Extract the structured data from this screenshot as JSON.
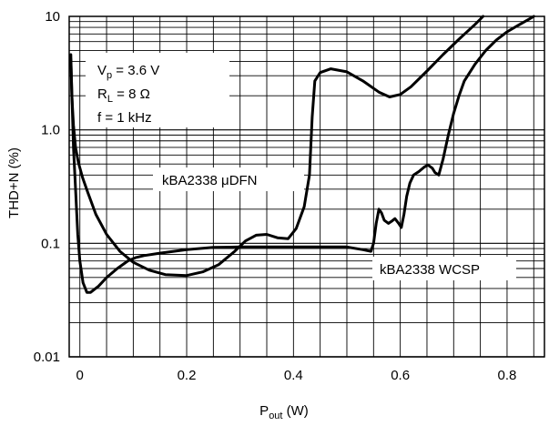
{
  "chart_data": {
    "type": "line",
    "xlabel": {
      "main": "P",
      "sub": "out",
      "rest": " (W)"
    },
    "ylabel": "THD+N (%)",
    "xlim": [
      -0.02,
      0.87
    ],
    "ylim": [
      0.01,
      10
    ],
    "yscale": "log",
    "grid": true,
    "x_ticks": [
      {
        "v": 0,
        "label": "0"
      },
      {
        "v": 0.2,
        "label": "0.2"
      },
      {
        "v": 0.4,
        "label": "0.4"
      },
      {
        "v": 0.6,
        "label": "0.6"
      },
      {
        "v": 0.8,
        "label": "0.8"
      }
    ],
    "y_ticks": [
      {
        "v": 0.01,
        "label": "0.01"
      },
      {
        "v": 0.1,
        "label": "0.1"
      },
      {
        "v": 1,
        "label": "1.0"
      },
      {
        "v": 10,
        "label": "10"
      }
    ],
    "conditions": [
      {
        "main": "V",
        "sub": "p",
        "rest": " = 3.6 V"
      },
      {
        "main": "R",
        "sub": "L",
        "rest": " = 8 Ω"
      },
      {
        "main": "f = 1 kHz",
        "sub": "",
        "rest": ""
      }
    ],
    "series": [
      {
        "name": "kBA2338  μDFN",
        "points": [
          [
            -0.017,
            4.6
          ],
          [
            -0.015,
            2.0
          ],
          [
            -0.012,
            1.1
          ],
          [
            -0.008,
            0.7
          ],
          [
            -0.003,
            0.52
          ],
          [
            0.005,
            0.38
          ],
          [
            0.015,
            0.28
          ],
          [
            0.03,
            0.18
          ],
          [
            0.05,
            0.12
          ],
          [
            0.075,
            0.085
          ],
          [
            0.1,
            0.068
          ],
          [
            0.13,
            0.058
          ],
          [
            0.16,
            0.053
          ],
          [
            0.2,
            0.052
          ],
          [
            0.23,
            0.056
          ],
          [
            0.26,
            0.065
          ],
          [
            0.29,
            0.085
          ],
          [
            0.31,
            0.105
          ],
          [
            0.33,
            0.118
          ],
          [
            0.35,
            0.12
          ],
          [
            0.37,
            0.112
          ],
          [
            0.39,
            0.11
          ],
          [
            0.405,
            0.135
          ],
          [
            0.42,
            0.21
          ],
          [
            0.43,
            0.4
          ],
          [
            0.435,
            1.3
          ],
          [
            0.44,
            2.7
          ],
          [
            0.45,
            3.2
          ],
          [
            0.47,
            3.45
          ],
          [
            0.5,
            3.25
          ],
          [
            0.53,
            2.7
          ],
          [
            0.56,
            2.15
          ],
          [
            0.58,
            1.95
          ],
          [
            0.6,
            2.05
          ],
          [
            0.62,
            2.4
          ],
          [
            0.65,
            3.3
          ],
          [
            0.68,
            4.6
          ],
          [
            0.71,
            6.3
          ],
          [
            0.74,
            8.5
          ],
          [
            0.755,
            10.0
          ]
        ]
      },
      {
        "name": "kBA2338 WCSP",
        "points": [
          [
            -0.017,
            4.2
          ],
          [
            -0.012,
            0.7
          ],
          [
            -0.008,
            0.3
          ],
          [
            -0.004,
            0.12
          ],
          [
            0.0,
            0.07
          ],
          [
            0.006,
            0.045
          ],
          [
            0.013,
            0.037
          ],
          [
            0.02,
            0.037
          ],
          [
            0.035,
            0.042
          ],
          [
            0.05,
            0.05
          ],
          [
            0.07,
            0.06
          ],
          [
            0.09,
            0.07
          ],
          [
            0.105,
            0.075
          ],
          [
            0.12,
            0.078
          ],
          [
            0.15,
            0.082
          ],
          [
            0.2,
            0.088
          ],
          [
            0.25,
            0.092
          ],
          [
            0.3,
            0.093
          ],
          [
            0.4,
            0.093
          ],
          [
            0.5,
            0.093
          ],
          [
            0.53,
            0.088
          ],
          [
            0.545,
            0.085
          ],
          [
            0.55,
            0.1
          ],
          [
            0.555,
            0.15
          ],
          [
            0.56,
            0.2
          ],
          [
            0.565,
            0.185
          ],
          [
            0.57,
            0.16
          ],
          [
            0.578,
            0.15
          ],
          [
            0.585,
            0.158
          ],
          [
            0.59,
            0.165
          ],
          [
            0.597,
            0.15
          ],
          [
            0.602,
            0.138
          ],
          [
            0.607,
            0.18
          ],
          [
            0.612,
            0.26
          ],
          [
            0.618,
            0.34
          ],
          [
            0.625,
            0.4
          ],
          [
            0.635,
            0.43
          ],
          [
            0.645,
            0.47
          ],
          [
            0.652,
            0.49
          ],
          [
            0.66,
            0.46
          ],
          [
            0.665,
            0.42
          ],
          [
            0.672,
            0.4
          ],
          [
            0.68,
            0.55
          ],
          [
            0.69,
            0.9
          ],
          [
            0.7,
            1.4
          ],
          [
            0.71,
            2.0
          ],
          [
            0.72,
            2.7
          ],
          [
            0.74,
            3.8
          ],
          [
            0.76,
            5.0
          ],
          [
            0.78,
            6.2
          ],
          [
            0.8,
            7.3
          ],
          [
            0.82,
            8.3
          ],
          [
            0.84,
            9.4
          ],
          [
            0.85,
            10.0
          ]
        ]
      }
    ],
    "series_label_positions": [
      {
        "series": 0,
        "text": "kBA2338  μDFN"
      },
      {
        "series": 1,
        "text": "kBA2338 WCSP"
      }
    ]
  }
}
